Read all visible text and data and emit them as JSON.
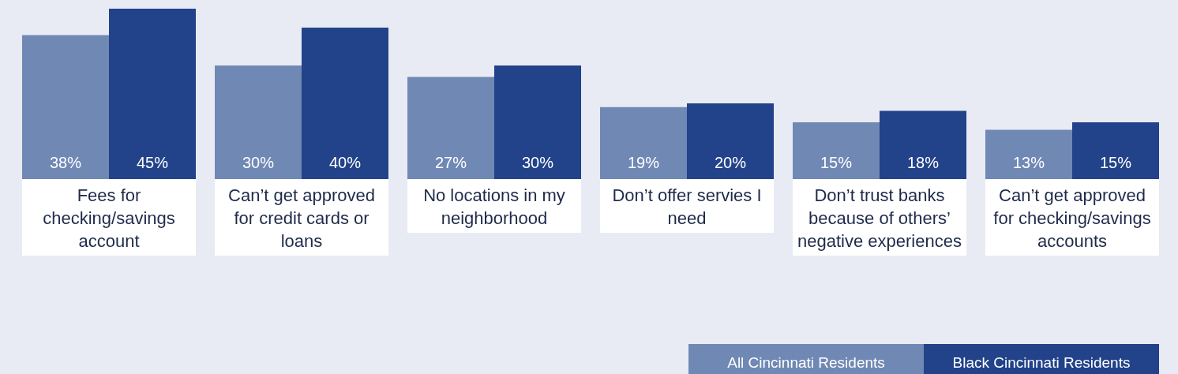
{
  "chart_data": {
    "type": "bar",
    "categories": [
      "Fees for checking/savings account",
      "Can’t get approved for credit cards or loans",
      "No locations in my neighborhood",
      "Don’t offer servies I need",
      "Don’t trust banks because of others’ negative experiences",
      "Can’t get approved for checking/savings accounts"
    ],
    "series": [
      {
        "name": "All Cincinnati Residents",
        "color": "#7088b4",
        "values": [
          38,
          30,
          27,
          19,
          15,
          13
        ],
        "value_labels": [
          "38%",
          "30%",
          "27%",
          "19%",
          "15%",
          "13%"
        ]
      },
      {
        "name": "Black Cincinnati Residents",
        "color": "#22428a",
        "values": [
          45,
          40,
          30,
          20,
          18,
          15
        ],
        "value_labels": [
          "45%",
          "40%",
          "30%",
          "20%",
          "18%",
          "15%"
        ]
      }
    ],
    "legend": "bottom right",
    "grid": false
  }
}
